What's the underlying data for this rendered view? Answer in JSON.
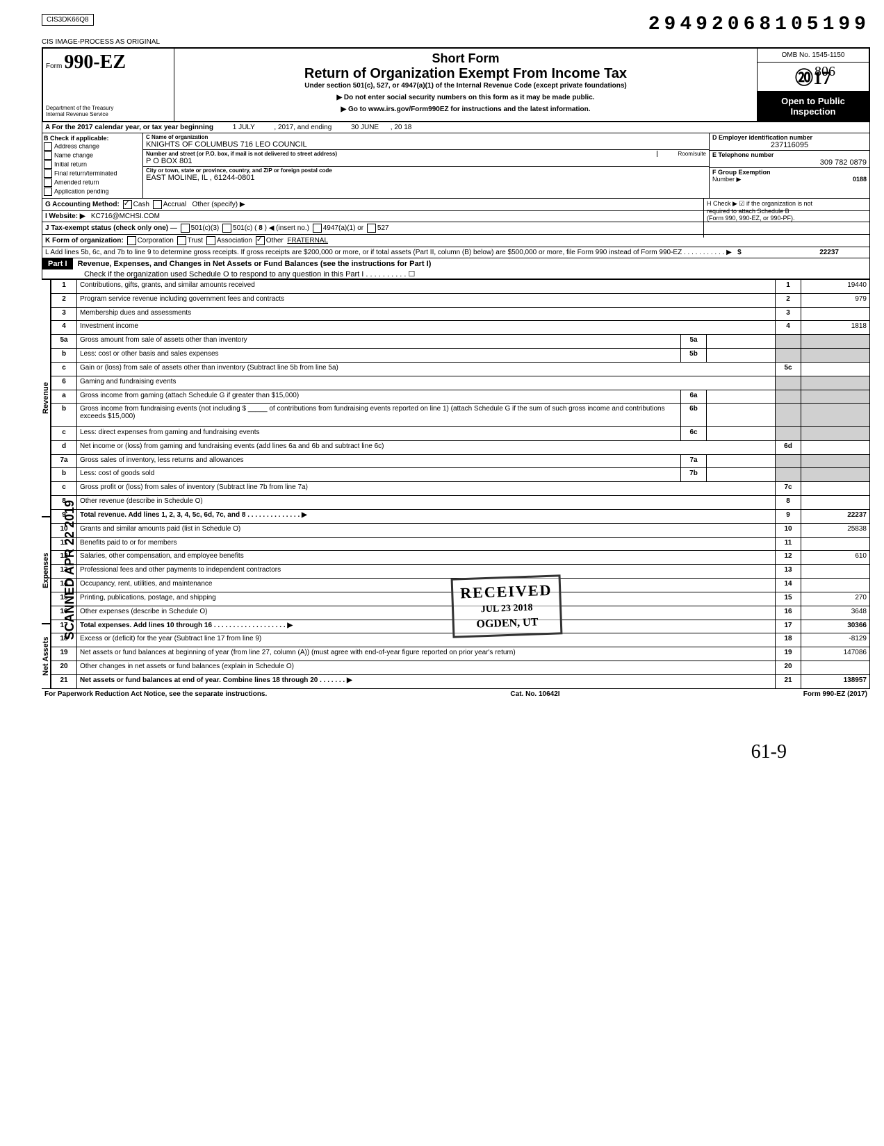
{
  "top": {
    "cis_code": "CIS3DK66Q8",
    "dln": "29492068105199",
    "cis_image": "CIS IMAGE-PROCESS AS ORIGINAL",
    "hand_806": "806"
  },
  "header": {
    "form_label": "Form",
    "form_no": "990-EZ",
    "dept1": "Department of the Treasury",
    "dept2": "Internal Revenue Service",
    "short_form": "Short Form",
    "title": "Return of Organization Exempt From Income Tax",
    "subtitle": "Under section 501(c), 527, or 4947(a)(1) of the Internal Revenue Code (except private foundations)",
    "instr1": "▶ Do not enter social security numbers on this form as it may be made public.",
    "instr2": "▶ Go to www.irs.gov/Form990EZ for instructions and the latest information.",
    "omb": "OMB No. 1545-1150",
    "year": "2017",
    "open_public1": "Open to Public",
    "open_public2": "Inspection"
  },
  "row_a": {
    "label": "A For the 2017 calendar year, or tax year beginning",
    "begin": "1 JULY",
    "mid": ", 2017, and ending",
    "end": "30 JUNE",
    "tail": ", 20 18"
  },
  "col_b": {
    "header": "B Check if applicable:",
    "items": [
      "Address change",
      "Name change",
      "Initial return",
      "Final return/terminated",
      "Amended return",
      "Application pending"
    ]
  },
  "col_c": {
    "name_lbl": "C Name of organization",
    "name_val": "KNIGHTS OF COLUMBUS 716 LEO COUNCIL",
    "street_lbl": "Number and street (or P.O. box, if mail is not delivered to street address)",
    "room_lbl": "Room/suite",
    "street_val": "P O BOX 801",
    "city_lbl": "City or town, state or province, country, and ZIP or foreign postal code",
    "city_val": "EAST MOLINE, IL , 61244-0801"
  },
  "col_de": {
    "d_lbl": "D Employer identification number",
    "d_val": "237116095",
    "e_lbl": "E Telephone number",
    "e_val": "309 782 0879",
    "f_lbl": "F Group Exemption",
    "f_lbl2": "Number ▶",
    "f_val": "0188"
  },
  "row_g": {
    "label": "G Accounting Method:",
    "cash": "Cash",
    "accrual": "Accrual",
    "other": "Other (specify) ▶"
  },
  "row_h": {
    "text1": "H Check ▶ ☑ if the organization is not",
    "text2": "required to attach Schedule B",
    "text3": "(Form 990, 990-EZ, or 990-PF)."
  },
  "row_i": {
    "label": "I Website: ▶",
    "val": "KC716@MCHSI.COM"
  },
  "row_j": {
    "label": "J Tax-exempt status (check only one) —",
    "c3": "501(c)(3)",
    "c": "501(c) (",
    "insert": "8",
    "insert2": ") ◀ (insert no.)",
    "a1": "4947(a)(1) or",
    "s527": "527"
  },
  "row_k": {
    "label": "K Form of organization:",
    "corp": "Corporation",
    "trust": "Trust",
    "assoc": "Association",
    "other": "Other",
    "other_val": "FRATERNAL"
  },
  "row_l": {
    "text": "L Add lines 5b, 6c, and 7b to line 9 to determine gross receipts. If gross receipts are $200,000 or more, or if total assets (Part II, column (B) below) are $500,000 or more, file Form 990 instead of Form 990-EZ . . . . . . . . . . . ▶",
    "sym": "$",
    "val": "22237"
  },
  "part1": {
    "header": "Part I",
    "title": "Revenue, Expenses, and Changes in Net Assets or Fund Balances (see the instructions for Part I)",
    "sub": "Check if the organization used Schedule O to respond to any question in this Part I . . . . . . . . . . ☐"
  },
  "sections": {
    "revenue": "Revenue",
    "expenses": "Expenses",
    "netassets": "Net Assets"
  },
  "lines": [
    {
      "n": "1",
      "desc": "Contributions, gifts, grants, and similar amounts received",
      "box": "1",
      "amt": "19440"
    },
    {
      "n": "2",
      "desc": "Program service revenue including government fees and contracts",
      "box": "2",
      "amt": "979"
    },
    {
      "n": "3",
      "desc": "Membership dues and assessments",
      "box": "3",
      "amt": ""
    },
    {
      "n": "4",
      "desc": "Investment income",
      "box": "4",
      "amt": "1818"
    },
    {
      "n": "5a",
      "desc": "Gross amount from sale of assets other than inventory",
      "ibox": "5a",
      "iamt": ""
    },
    {
      "n": "b",
      "desc": "Less: cost or other basis and sales expenses",
      "ibox": "5b",
      "iamt": ""
    },
    {
      "n": "c",
      "desc": "Gain or (loss) from sale of assets other than inventory (Subtract line 5b from line 5a)",
      "box": "5c",
      "amt": ""
    },
    {
      "n": "6",
      "desc": "Gaming and fundraising events"
    },
    {
      "n": "a",
      "desc": "Gross income from gaming (attach Schedule G if greater than $15,000)",
      "ibox": "6a",
      "iamt": ""
    },
    {
      "n": "b",
      "desc": "Gross income from fundraising events (not including $ _____ of contributions from fundraising events reported on line 1) (attach Schedule G if the sum of such gross income and contributions exceeds $15,000)",
      "ibox": "6b",
      "iamt": ""
    },
    {
      "n": "c",
      "desc": "Less: direct expenses from gaming and fundraising events",
      "ibox": "6c",
      "iamt": ""
    },
    {
      "n": "d",
      "desc": "Net income or (loss) from gaming and fundraising events (add lines 6a and 6b and subtract line 6c)",
      "box": "6d",
      "amt": ""
    },
    {
      "n": "7a",
      "desc": "Gross sales of inventory, less returns and allowances",
      "ibox": "7a",
      "iamt": ""
    },
    {
      "n": "b",
      "desc": "Less: cost of goods sold",
      "ibox": "7b",
      "iamt": ""
    },
    {
      "n": "c",
      "desc": "Gross profit or (loss) from sales of inventory (Subtract line 7b from line 7a)",
      "box": "7c",
      "amt": ""
    },
    {
      "n": "8",
      "desc": "Other revenue (describe in Schedule O)",
      "box": "8",
      "amt": ""
    },
    {
      "n": "9",
      "desc": "Total revenue. Add lines 1, 2, 3, 4, 5c, 6d, 7c, and 8 . . . . . . . . . . . . . . ▶",
      "box": "9",
      "amt": "22237",
      "bold": true
    },
    {
      "n": "10",
      "desc": "Grants and similar amounts paid (list in Schedule O)",
      "box": "10",
      "amt": "25838"
    },
    {
      "n": "11",
      "desc": "Benefits paid to or for members",
      "box": "11",
      "amt": ""
    },
    {
      "n": "12",
      "desc": "Salaries, other compensation, and employee benefits",
      "box": "12",
      "amt": "610"
    },
    {
      "n": "13",
      "desc": "Professional fees and other payments to independent contractors",
      "box": "13",
      "amt": ""
    },
    {
      "n": "14",
      "desc": "Occupancy, rent, utilities, and maintenance",
      "box": "14",
      "amt": ""
    },
    {
      "n": "15",
      "desc": "Printing, publications, postage, and shipping",
      "box": "15",
      "amt": "270"
    },
    {
      "n": "16",
      "desc": "Other expenses (describe in Schedule O)",
      "box": "16",
      "amt": "3648"
    },
    {
      "n": "17",
      "desc": "Total expenses. Add lines 10 through 16 . . . . . . . . . . . . . . . . . . . ▶",
      "box": "17",
      "amt": "30366",
      "bold": true
    },
    {
      "n": "18",
      "desc": "Excess or (deficit) for the year (Subtract line 17 from line 9)",
      "box": "18",
      "amt": "-8129"
    },
    {
      "n": "19",
      "desc": "Net assets or fund balances at beginning of year (from line 27, column (A)) (must agree with end-of-year figure reported on prior year's return)",
      "box": "19",
      "amt": "147086"
    },
    {
      "n": "20",
      "desc": "Other changes in net assets or fund balances (explain in Schedule O)",
      "box": "20",
      "amt": ""
    },
    {
      "n": "21",
      "desc": "Net assets or fund balances at end of year. Combine lines 18 through 20 . . . . . . . ▶",
      "box": "21",
      "amt": "138957",
      "bold": true
    }
  ],
  "footer": {
    "left": "For Paperwork Reduction Act Notice, see the separate instructions.",
    "mid": "Cat. No. 10642I",
    "right": "Form 990-EZ (2017)"
  },
  "stamp": {
    "received": "RECEIVED",
    "date": "JUL 23 2018",
    "loc": "OGDEN, UT",
    "scanned": "SCANNED APR 22 2019"
  },
  "hand_bottom": "61-9"
}
